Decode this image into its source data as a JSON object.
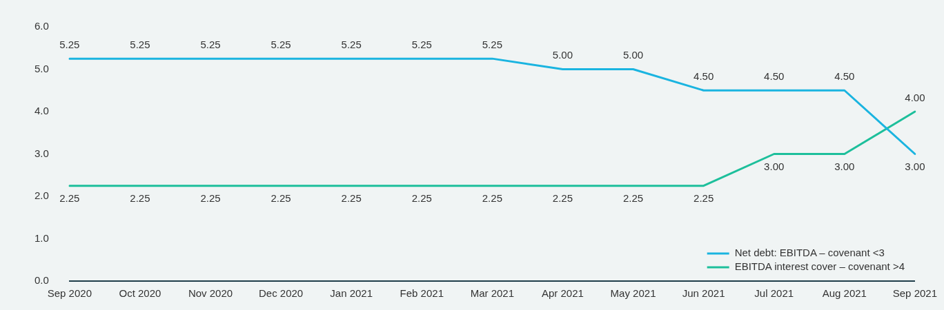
{
  "chart_data": {
    "type": "line",
    "categories": [
      "Sep 2020",
      "Oct 2020",
      "Nov 2020",
      "Dec 2020",
      "Jan 2021",
      "Feb 2021",
      "Mar 2021",
      "Apr 2021",
      "May 2021",
      "Jun 2021",
      "Jul 2021",
      "Aug 2021",
      "Sep 2021"
    ],
    "series": [
      {
        "name": "Net debt: EBITDA – covenant <3",
        "color": "#1ab4e0",
        "values": [
          5.25,
          5.25,
          5.25,
          5.25,
          5.25,
          5.25,
          5.25,
          5.0,
          5.0,
          4.5,
          4.5,
          4.5,
          3.0
        ],
        "value_labels": [
          "5.25",
          "5.25",
          "5.25",
          "5.25",
          "5.25",
          "5.25",
          "5.25",
          "5.00",
          "5.00",
          "4.50",
          "4.50",
          "4.50",
          "3.00"
        ]
      },
      {
        "name": "EBITDA interest cover – covenant >4",
        "color": "#1dbf9b",
        "values": [
          2.25,
          2.25,
          2.25,
          2.25,
          2.25,
          2.25,
          2.25,
          2.25,
          2.25,
          2.25,
          3.0,
          3.0,
          4.0
        ],
        "value_labels": [
          "2.25",
          "2.25",
          "2.25",
          "2.25",
          "2.25",
          "2.25",
          "2.25",
          "2.25",
          "2.25",
          "2.25",
          "3.00",
          "3.00",
          "4.00"
        ]
      }
    ],
    "ylim": [
      0,
      6
    ],
    "yticks": [
      {
        "value": 0,
        "label": "0.0"
      },
      {
        "value": 1,
        "label": "1.0"
      },
      {
        "value": 2,
        "label": "2.0"
      },
      {
        "value": 3,
        "label": "3.0"
      },
      {
        "value": 4,
        "label": "4.0"
      },
      {
        "value": 5,
        "label": "5.0"
      },
      {
        "value": 6,
        "label": "6.0"
      }
    ],
    "grid": false,
    "legend": "bottom right",
    "marker": "none",
    "line_style": "solid"
  }
}
